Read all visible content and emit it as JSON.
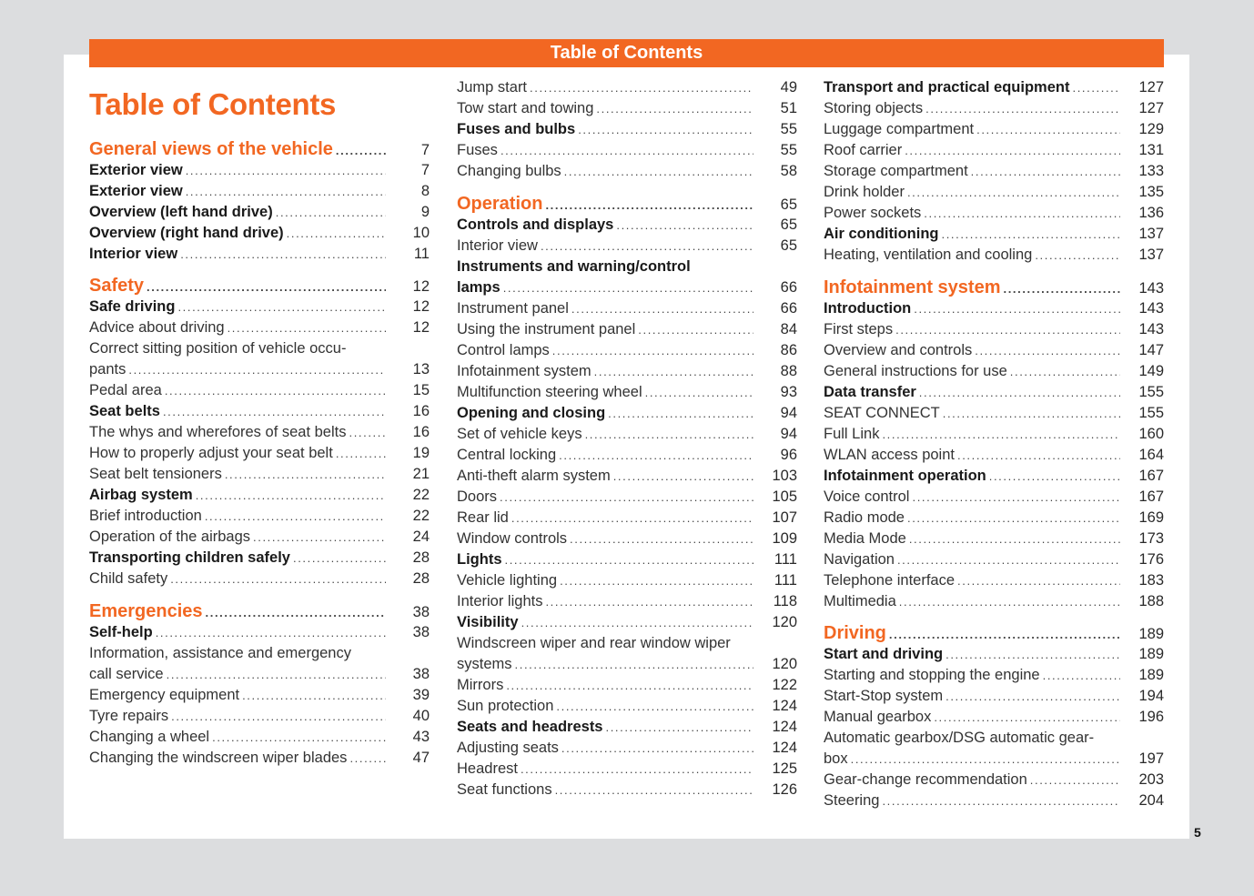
{
  "header": {
    "banner": "Table of Contents",
    "title": "Table of Contents"
  },
  "page_number": "5",
  "colors": {
    "accent": "#f26722",
    "text": "#2a2a2a",
    "background": "#dcdddf"
  },
  "toc": {
    "columns": [
      {
        "entries": [
          {
            "level": "s",
            "lines": [
              "General views of the vehicle"
            ],
            "page": "7"
          },
          {
            "level": "b",
            "lines": [
              "Exterior view"
            ],
            "page": "7"
          },
          {
            "level": "b",
            "lines": [
              "Exterior view"
            ],
            "page": "8"
          },
          {
            "level": "b",
            "lines": [
              "Overview (left hand drive)"
            ],
            "page": "9"
          },
          {
            "level": "b",
            "lines": [
              "Overview (right hand drive)"
            ],
            "page": "10"
          },
          {
            "level": "b",
            "lines": [
              "Interior view"
            ],
            "page": "11"
          },
          {
            "level": "s",
            "lines": [
              "Safety"
            ],
            "page": "12"
          },
          {
            "level": "b",
            "lines": [
              "Safe driving"
            ],
            "page": "12"
          },
          {
            "level": "n",
            "lines": [
              "Advice about driving"
            ],
            "page": "12"
          },
          {
            "level": "n",
            "lines": [
              "Correct sitting position of vehicle occu-",
              "pants"
            ],
            "page": "13"
          },
          {
            "level": "n",
            "lines": [
              "Pedal area"
            ],
            "page": "15"
          },
          {
            "level": "b",
            "lines": [
              "Seat belts"
            ],
            "page": "16"
          },
          {
            "level": "n",
            "lines": [
              "The whys and wherefores of seat belts"
            ],
            "page": "16"
          },
          {
            "level": "n",
            "lines": [
              "How to properly adjust your seat belt"
            ],
            "page": "19"
          },
          {
            "level": "n",
            "lines": [
              "Seat belt tensioners"
            ],
            "page": "21"
          },
          {
            "level": "b",
            "lines": [
              "Airbag system"
            ],
            "page": "22"
          },
          {
            "level": "n",
            "lines": [
              "Brief introduction"
            ],
            "page": "22"
          },
          {
            "level": "n",
            "lines": [
              "Operation of the airbags"
            ],
            "page": "24"
          },
          {
            "level": "b",
            "lines": [
              "Transporting children safely"
            ],
            "page": "28"
          },
          {
            "level": "n",
            "lines": [
              "Child safety"
            ],
            "page": "28"
          },
          {
            "level": "s",
            "lines": [
              "Emergencies"
            ],
            "page": "38"
          },
          {
            "level": "b",
            "lines": [
              "Self-help"
            ],
            "page": "38"
          },
          {
            "level": "n",
            "lines": [
              "Information, assistance and emergency",
              "call service"
            ],
            "page": "38"
          },
          {
            "level": "n",
            "lines": [
              "Emergency equipment"
            ],
            "page": "39"
          },
          {
            "level": "n",
            "lines": [
              "Tyre repairs"
            ],
            "page": "40"
          },
          {
            "level": "n",
            "lines": [
              "Changing a wheel"
            ],
            "page": "43"
          },
          {
            "level": "n",
            "lines": [
              "Changing the windscreen wiper blades"
            ],
            "page": "47"
          }
        ]
      },
      {
        "entries": [
          {
            "level": "n",
            "lines": [
              "Jump start"
            ],
            "page": "49"
          },
          {
            "level": "n",
            "lines": [
              "Tow start and towing"
            ],
            "page": "51"
          },
          {
            "level": "b",
            "lines": [
              "Fuses and bulbs"
            ],
            "page": "55"
          },
          {
            "level": "n",
            "lines": [
              "Fuses"
            ],
            "page": "55"
          },
          {
            "level": "n",
            "lines": [
              "Changing bulbs"
            ],
            "page": "58"
          },
          {
            "level": "s",
            "lines": [
              "Operation"
            ],
            "page": "65"
          },
          {
            "level": "b",
            "lines": [
              "Controls and displays"
            ],
            "page": "65"
          },
          {
            "level": "n",
            "lines": [
              "Interior view"
            ],
            "page": "65"
          },
          {
            "level": "b",
            "lines": [
              "Instruments and warning/control",
              "lamps"
            ],
            "page": "66"
          },
          {
            "level": "n",
            "lines": [
              "Instrument panel"
            ],
            "page": "66"
          },
          {
            "level": "n",
            "lines": [
              "Using the instrument panel"
            ],
            "page": "84"
          },
          {
            "level": "n",
            "lines": [
              "Control lamps"
            ],
            "page": "86"
          },
          {
            "level": "n",
            "lines": [
              "Infotainment system"
            ],
            "page": "88"
          },
          {
            "level": "n",
            "lines": [
              "Multifunction steering wheel"
            ],
            "page": "93"
          },
          {
            "level": "b",
            "lines": [
              "Opening and closing"
            ],
            "page": "94"
          },
          {
            "level": "n",
            "lines": [
              "Set of vehicle keys"
            ],
            "page": "94"
          },
          {
            "level": "n",
            "lines": [
              "Central locking"
            ],
            "page": "96"
          },
          {
            "level": "n",
            "lines": [
              "Anti-theft alarm system"
            ],
            "page": "103"
          },
          {
            "level": "n",
            "lines": [
              "Doors"
            ],
            "page": "105"
          },
          {
            "level": "n",
            "lines": [
              "Rear lid"
            ],
            "page": "107"
          },
          {
            "level": "n",
            "lines": [
              "Window controls"
            ],
            "page": "109"
          },
          {
            "level": "b",
            "lines": [
              "Lights"
            ],
            "page": "111"
          },
          {
            "level": "n",
            "lines": [
              "Vehicle lighting"
            ],
            "page": "111"
          },
          {
            "level": "n",
            "lines": [
              "Interior lights"
            ],
            "page": "118"
          },
          {
            "level": "b",
            "lines": [
              "Visibility"
            ],
            "page": "120"
          },
          {
            "level": "n",
            "lines": [
              "Windscreen wiper and rear window wiper",
              "systems"
            ],
            "page": "120"
          },
          {
            "level": "n",
            "lines": [
              "Mirrors"
            ],
            "page": "122"
          },
          {
            "level": "n",
            "lines": [
              "Sun protection"
            ],
            "page": "124"
          },
          {
            "level": "b",
            "lines": [
              "Seats and headrests"
            ],
            "page": "124"
          },
          {
            "level": "n",
            "lines": [
              "Adjusting seats"
            ],
            "page": "124"
          },
          {
            "level": "n",
            "lines": [
              "Headrest"
            ],
            "page": "125"
          },
          {
            "level": "n",
            "lines": [
              "Seat functions"
            ],
            "page": "126"
          }
        ]
      },
      {
        "entries": [
          {
            "level": "b",
            "lines": [
              "Transport and practical equipment"
            ],
            "page": "127"
          },
          {
            "level": "n",
            "lines": [
              "Storing objects"
            ],
            "page": "127"
          },
          {
            "level": "n",
            "lines": [
              "Luggage compartment"
            ],
            "page": "129"
          },
          {
            "level": "n",
            "lines": [
              "Roof carrier"
            ],
            "page": "131"
          },
          {
            "level": "n",
            "lines": [
              "Storage compartment"
            ],
            "page": "133"
          },
          {
            "level": "n",
            "lines": [
              "Drink holder"
            ],
            "page": "135"
          },
          {
            "level": "n",
            "lines": [
              "Power sockets"
            ],
            "page": "136"
          },
          {
            "level": "b",
            "lines": [
              "Air conditioning"
            ],
            "page": "137"
          },
          {
            "level": "n",
            "lines": [
              "Heating, ventilation and cooling"
            ],
            "page": "137"
          },
          {
            "level": "s",
            "lines": [
              "Infotainment system"
            ],
            "page": "143"
          },
          {
            "level": "b",
            "lines": [
              "Introduction"
            ],
            "page": "143"
          },
          {
            "level": "n",
            "lines": [
              "First steps"
            ],
            "page": "143"
          },
          {
            "level": "n",
            "lines": [
              "Overview and controls"
            ],
            "page": "147"
          },
          {
            "level": "n",
            "lines": [
              "General instructions for use"
            ],
            "page": "149"
          },
          {
            "level": "b",
            "lines": [
              "Data transfer"
            ],
            "page": "155"
          },
          {
            "level": "n",
            "lines": [
              "SEAT CONNECT"
            ],
            "page": "155"
          },
          {
            "level": "n",
            "lines": [
              "Full Link"
            ],
            "page": "160"
          },
          {
            "level": "n",
            "lines": [
              "WLAN access point"
            ],
            "page": "164"
          },
          {
            "level": "b",
            "lines": [
              "Infotainment operation"
            ],
            "page": "167"
          },
          {
            "level": "n",
            "lines": [
              "Voice control"
            ],
            "page": "167"
          },
          {
            "level": "n",
            "lines": [
              "Radio mode"
            ],
            "page": "169"
          },
          {
            "level": "n",
            "lines": [
              "Media Mode"
            ],
            "page": "173"
          },
          {
            "level": "n",
            "lines": [
              "Navigation"
            ],
            "page": "176"
          },
          {
            "level": "n",
            "lines": [
              "Telephone interface"
            ],
            "page": "183"
          },
          {
            "level": "n",
            "lines": [
              "Multimedia"
            ],
            "page": "188"
          },
          {
            "level": "s",
            "lines": [
              "Driving"
            ],
            "page": "189"
          },
          {
            "level": "b",
            "lines": [
              "Start and driving"
            ],
            "page": "189"
          },
          {
            "level": "n",
            "lines": [
              "Starting and stopping the engine"
            ],
            "page": "189"
          },
          {
            "level": "n",
            "lines": [
              "Start-Stop system"
            ],
            "page": "194"
          },
          {
            "level": "n",
            "lines": [
              "Manual gearbox"
            ],
            "page": "196"
          },
          {
            "level": "n",
            "lines": [
              "Automatic gearbox/DSG automatic gear-",
              "box"
            ],
            "page": "197"
          },
          {
            "level": "n",
            "lines": [
              "Gear-change recommendation"
            ],
            "page": "203"
          },
          {
            "level": "n",
            "lines": [
              "Steering"
            ],
            "page": "204"
          }
        ]
      }
    ]
  }
}
